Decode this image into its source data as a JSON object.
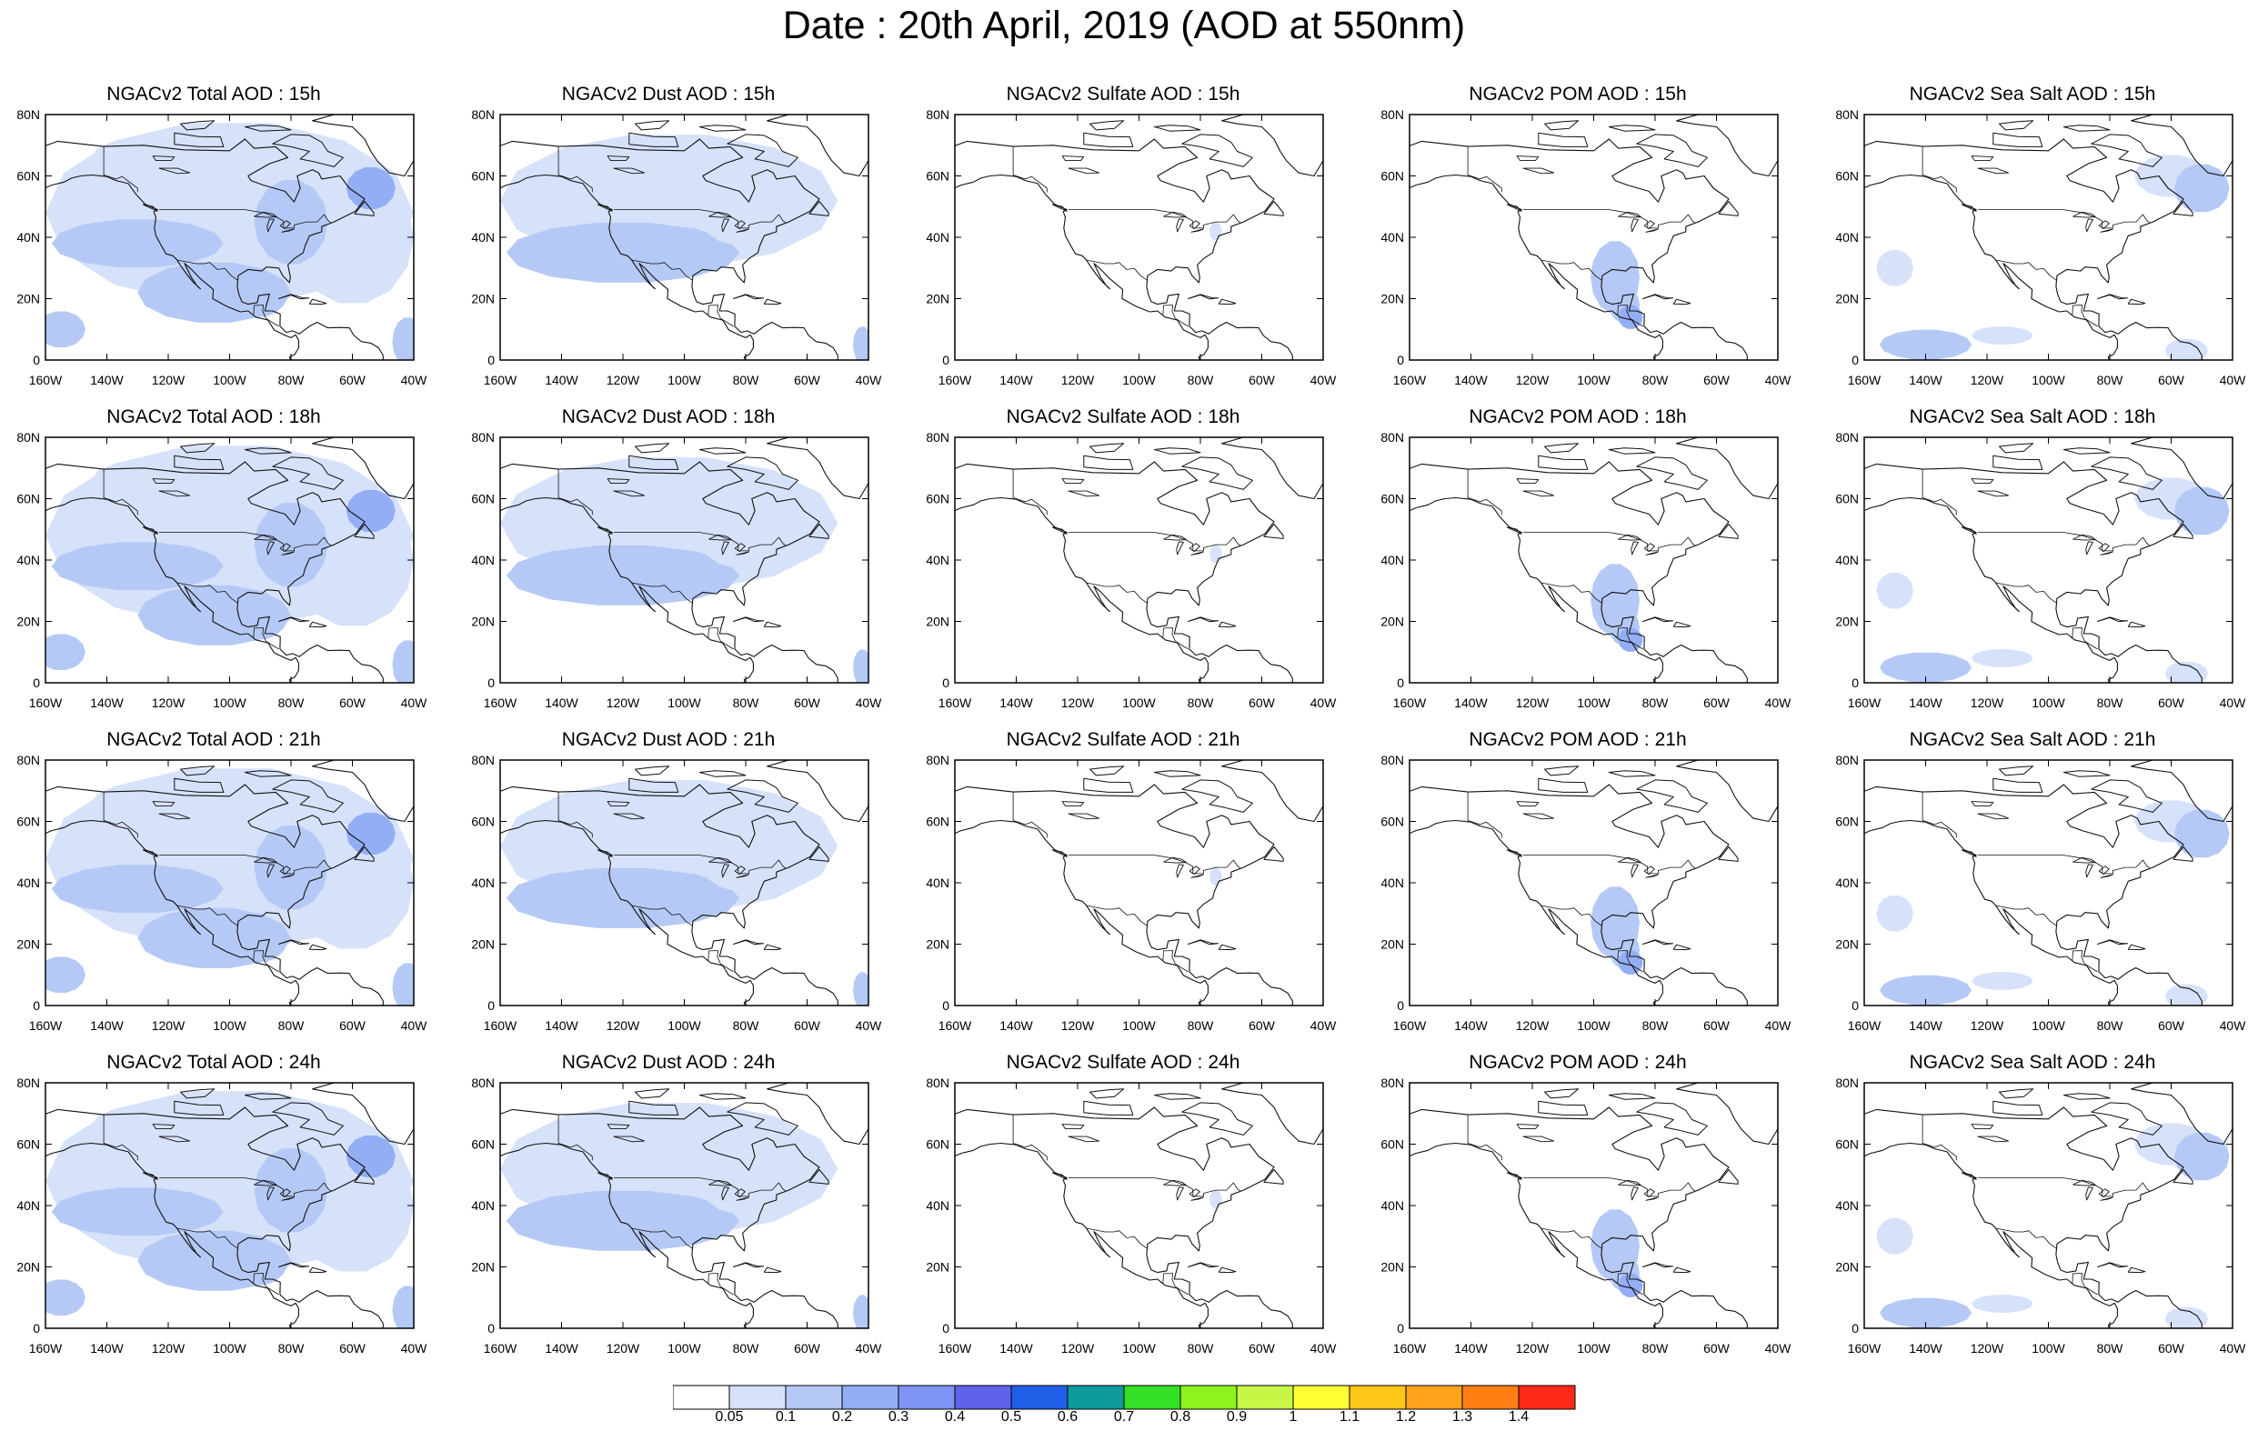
{
  "title": "Date : 20th April, 2019 (AOD at 550nm)",
  "longitude_ticks": [
    "160W",
    "140W",
    "120W",
    "100W",
    "80W",
    "60W",
    "40W"
  ],
  "latitude_ticks": [
    "0",
    "20N",
    "40N",
    "60N",
    "80N"
  ],
  "panels": [
    {
      "title": "NGACv2 Total AOD : 15h",
      "species": "total"
    },
    {
      "title": "NGACv2 Dust AOD : 15h",
      "species": "dust"
    },
    {
      "title": "NGACv2 Sulfate AOD : 15h",
      "species": "sulfate"
    },
    {
      "title": "NGACv2 POM AOD : 15h",
      "species": "pom"
    },
    {
      "title": "NGACv2 Sea Salt AOD : 15h",
      "species": "seasalt"
    },
    {
      "title": "NGACv2 Total AOD : 18h",
      "species": "total"
    },
    {
      "title": "NGACv2 Dust AOD : 18h",
      "species": "dust"
    },
    {
      "title": "NGACv2 Sulfate AOD : 18h",
      "species": "sulfate"
    },
    {
      "title": "NGACv2 POM AOD : 18h",
      "species": "pom"
    },
    {
      "title": "NGACv2 Sea Salt AOD : 18h",
      "species": "seasalt"
    },
    {
      "title": "NGACv2 Total AOD : 21h",
      "species": "total"
    },
    {
      "title": "NGACv2 Dust AOD : 21h",
      "species": "dust"
    },
    {
      "title": "NGACv2 Sulfate AOD : 21h",
      "species": "sulfate"
    },
    {
      "title": "NGACv2 POM AOD : 21h",
      "species": "pom"
    },
    {
      "title": "NGACv2 Sea Salt AOD : 21h",
      "species": "seasalt"
    },
    {
      "title": "NGACv2 Total AOD : 24h",
      "species": "total"
    },
    {
      "title": "NGACv2 Dust AOD : 24h",
      "species": "dust"
    },
    {
      "title": "NGACv2 Sulfate AOD : 24h",
      "species": "sulfate"
    },
    {
      "title": "NGACv2 POM AOD : 24h",
      "species": "pom"
    },
    {
      "title": "NGACv2 Sea Salt  AOD : 24h",
      "species": "seasalt"
    }
  ],
  "colorbar": {
    "labels": [
      "0.05",
      "0.1",
      "0.2",
      "0.3",
      "0.4",
      "0.5",
      "0.6",
      "0.7",
      "0.8",
      "0.9",
      "1",
      "1.1",
      "1.2",
      "1.3",
      "1.4"
    ],
    "colors": [
      "#ffffff",
      "#d6e1fa",
      "#b5c9f6",
      "#93aef5",
      "#7f94f4",
      "#5f63e9",
      "#1f5fe8",
      "#0e9b9b",
      "#34e025",
      "#8ef21f",
      "#c6f646",
      "#ffff33",
      "#ffc61a",
      "#ffa31a",
      "#ff7f15",
      "#ff2a1a"
    ]
  }
}
